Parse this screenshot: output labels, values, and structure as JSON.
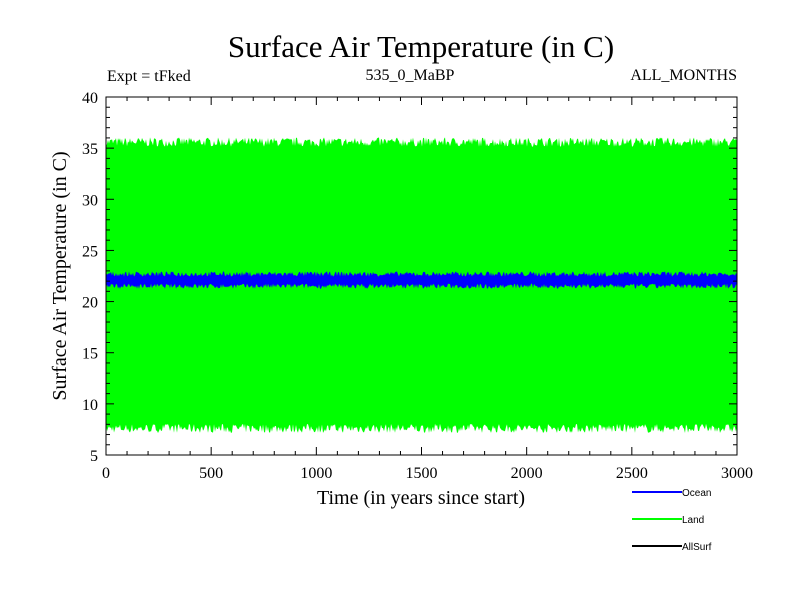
{
  "chart_data": {
    "type": "area",
    "title": "Surface Air Temperature (in C)",
    "subtitle_left": "Expt = tFked",
    "subtitle_center": "535_0_MaBP",
    "subtitle_right": "ALL_MONTHS",
    "xlabel": "Time (in years since start)",
    "ylabel": "Surface Air Temperature (in C)",
    "xlim": [
      0,
      3000
    ],
    "ylim": [
      5,
      40
    ],
    "xticks": [
      0,
      500,
      1000,
      1500,
      2000,
      2500,
      3000
    ],
    "yticks": [
      5,
      10,
      15,
      20,
      25,
      30,
      35,
      40
    ],
    "grid": false,
    "legend_position": "bottom-right",
    "series": [
      {
        "name": "Ocean",
        "color": "#0000ff",
        "min": 21.5,
        "max": 22.7,
        "noise": 0.25
      },
      {
        "name": "Land",
        "color": "#00ff00",
        "min": 7.6,
        "max": 35.6,
        "noise": 0.45
      },
      {
        "name": "AllSurf",
        "color": "#000000"
      }
    ]
  }
}
